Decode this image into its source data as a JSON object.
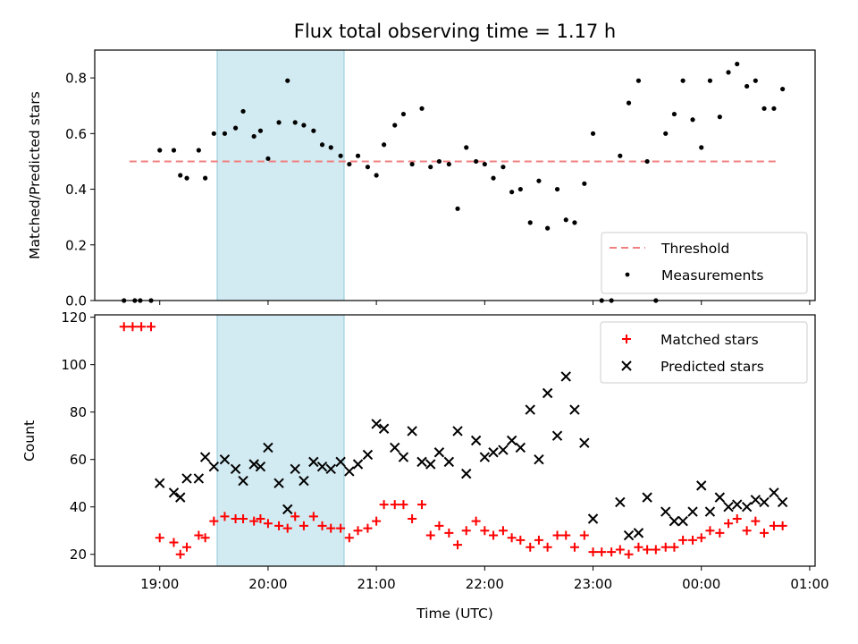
{
  "chart_data": [
    {
      "type": "scatter",
      "title": "Flux total observing time = 1.17 h",
      "xlabel": "",
      "ylabel": "Matched/Predicted stars",
      "xlim": [
        18.4,
        25.05
      ],
      "ylim": [
        0,
        0.9
      ],
      "yticks": [
        0.0,
        0.2,
        0.4,
        0.6,
        0.8
      ],
      "ytick_labels": [
        "0.0",
        "0.2",
        "0.4",
        "0.6",
        "0.8"
      ],
      "xticks": [
        19,
        20,
        21,
        22,
        23,
        24,
        25
      ],
      "shaded_span": [
        19.48,
        20.67
      ],
      "shade_color": "#add8e6",
      "grid": false,
      "legend_position": "lower right",
      "legend": [
        {
          "label": "Threshold",
          "marker": "dashed-line",
          "color": "#f08080"
        },
        {
          "label": "Measurements",
          "marker": "dot",
          "color": "#000000"
        }
      ],
      "series": [
        {
          "name": "Threshold",
          "style": "dashed-line",
          "color": "#f08080",
          "points": [
            [
              18.72,
              0.5
            ],
            [
              24.72,
              0.5
            ]
          ]
        },
        {
          "name": "Measurements",
          "style": "dot",
          "color": "#000000",
          "points": [
            [
              18.67,
              0.0
            ],
            [
              18.77,
              0.0
            ],
            [
              18.82,
              0.0
            ],
            [
              18.92,
              0.0
            ],
            [
              19.0,
              0.54
            ],
            [
              19.13,
              0.54
            ],
            [
              19.19,
              0.45
            ],
            [
              19.25,
              0.44
            ],
            [
              19.36,
              0.54
            ],
            [
              19.42,
              0.44
            ],
            [
              19.5,
              0.6
            ],
            [
              19.6,
              0.6
            ],
            [
              19.7,
              0.62
            ],
            [
              19.77,
              0.68
            ],
            [
              19.87,
              0.59
            ],
            [
              19.93,
              0.61
            ],
            [
              20.0,
              0.51
            ],
            [
              20.1,
              0.64
            ],
            [
              20.18,
              0.79
            ],
            [
              20.25,
              0.64
            ],
            [
              20.33,
              0.63
            ],
            [
              20.42,
              0.61
            ],
            [
              20.5,
              0.56
            ],
            [
              20.58,
              0.55
            ],
            [
              20.67,
              0.52
            ],
            [
              20.75,
              0.49
            ],
            [
              20.83,
              0.52
            ],
            [
              20.92,
              0.48
            ],
            [
              21.0,
              0.45
            ],
            [
              21.07,
              0.56
            ],
            [
              21.17,
              0.63
            ],
            [
              21.25,
              0.67
            ],
            [
              21.33,
              0.49
            ],
            [
              21.42,
              0.69
            ],
            [
              21.5,
              0.48
            ],
            [
              21.58,
              0.5
            ],
            [
              21.67,
              0.49
            ],
            [
              21.75,
              0.33
            ],
            [
              21.83,
              0.55
            ],
            [
              21.92,
              0.5
            ],
            [
              22.0,
              0.49
            ],
            [
              22.08,
              0.44
            ],
            [
              22.17,
              0.48
            ],
            [
              22.25,
              0.39
            ],
            [
              22.33,
              0.4
            ],
            [
              22.42,
              0.28
            ],
            [
              22.5,
              0.43
            ],
            [
              22.58,
              0.26
            ],
            [
              22.67,
              0.4
            ],
            [
              22.75,
              0.29
            ],
            [
              22.83,
              0.28
            ],
            [
              22.92,
              0.42
            ],
            [
              23.0,
              0.6
            ],
            [
              23.08,
              0.0
            ],
            [
              23.17,
              0.0
            ],
            [
              23.25,
              0.52
            ],
            [
              23.33,
              0.71
            ],
            [
              23.42,
              0.79
            ],
            [
              23.5,
              0.5
            ],
            [
              23.58,
              0.0
            ],
            [
              23.67,
              0.6
            ],
            [
              23.75,
              0.67
            ],
            [
              23.83,
              0.79
            ],
            [
              23.92,
              0.65
            ],
            [
              24.0,
              0.55
            ],
            [
              24.08,
              0.79
            ],
            [
              24.17,
              0.66
            ],
            [
              24.25,
              0.82
            ],
            [
              24.33,
              0.85
            ],
            [
              24.42,
              0.77
            ],
            [
              24.5,
              0.79
            ],
            [
              24.58,
              0.69
            ],
            [
              24.67,
              0.69
            ],
            [
              24.75,
              0.76
            ]
          ]
        }
      ]
    },
    {
      "type": "scatter",
      "title": "",
      "xlabel": "Time (UTC)",
      "ylabel": "Count",
      "xlim": [
        18.4,
        25.05
      ],
      "ylim": [
        15,
        121
      ],
      "yticks": [
        20,
        40,
        60,
        80,
        100,
        120
      ],
      "ytick_labels": [
        "20",
        "40",
        "60",
        "80",
        "100",
        "120"
      ],
      "xticks": [
        19,
        20,
        21,
        22,
        23,
        24,
        25
      ],
      "xtick_labels": [
        "19:00",
        "20:00",
        "21:00",
        "22:00",
        "23:00",
        "00:00",
        "01:00"
      ],
      "shaded_span": [
        19.48,
        20.67
      ],
      "shade_color": "#add8e6",
      "grid": false,
      "legend_position": "upper right",
      "legend": [
        {
          "label": "Matched stars",
          "marker": "plus",
          "color": "#ff0000"
        },
        {
          "label": "Predicted stars",
          "marker": "x",
          "color": "#000000"
        }
      ],
      "series": [
        {
          "name": "Matched stars",
          "style": "plus",
          "color": "#ff0000",
          "points": [
            [
              18.67,
              116
            ],
            [
              18.75,
              116
            ],
            [
              18.83,
              116
            ],
            [
              18.92,
              116
            ],
            [
              19.0,
              27
            ],
            [
              19.13,
              25
            ],
            [
              19.19,
              20
            ],
            [
              19.25,
              23
            ],
            [
              19.36,
              28
            ],
            [
              19.42,
              27
            ],
            [
              19.5,
              34
            ],
            [
              19.6,
              36
            ],
            [
              19.7,
              35
            ],
            [
              19.77,
              35
            ],
            [
              19.87,
              34
            ],
            [
              19.93,
              35
            ],
            [
              20.0,
              33
            ],
            [
              20.1,
              32
            ],
            [
              20.18,
              31
            ],
            [
              20.25,
              36
            ],
            [
              20.33,
              32
            ],
            [
              20.42,
              36
            ],
            [
              20.5,
              32
            ],
            [
              20.58,
              31
            ],
            [
              20.67,
              31
            ],
            [
              20.75,
              27
            ],
            [
              20.83,
              30
            ],
            [
              20.92,
              31
            ],
            [
              21.0,
              34
            ],
            [
              21.07,
              41
            ],
            [
              21.17,
              41
            ],
            [
              21.25,
              41
            ],
            [
              21.33,
              35
            ],
            [
              21.42,
              41
            ],
            [
              21.5,
              28
            ],
            [
              21.58,
              32
            ],
            [
              21.67,
              29
            ],
            [
              21.75,
              24
            ],
            [
              21.83,
              30
            ],
            [
              21.92,
              34
            ],
            [
              22.0,
              30
            ],
            [
              22.08,
              28
            ],
            [
              22.17,
              30
            ],
            [
              22.25,
              27
            ],
            [
              22.33,
              26
            ],
            [
              22.42,
              23
            ],
            [
              22.5,
              26
            ],
            [
              22.58,
              23
            ],
            [
              22.67,
              28
            ],
            [
              22.75,
              28
            ],
            [
              22.83,
              23
            ],
            [
              22.92,
              28
            ],
            [
              23.0,
              21
            ],
            [
              23.08,
              21
            ],
            [
              23.17,
              21
            ],
            [
              23.25,
              22
            ],
            [
              23.33,
              20
            ],
            [
              23.42,
              23
            ],
            [
              23.5,
              22
            ],
            [
              23.58,
              22
            ],
            [
              23.67,
              23
            ],
            [
              23.75,
              23
            ],
            [
              23.83,
              26
            ],
            [
              23.92,
              26
            ],
            [
              24.0,
              27
            ],
            [
              24.08,
              30
            ],
            [
              24.17,
              29
            ],
            [
              24.25,
              33
            ],
            [
              24.33,
              35
            ],
            [
              24.42,
              30
            ],
            [
              24.5,
              34
            ],
            [
              24.58,
              29
            ],
            [
              24.67,
              32
            ],
            [
              24.75,
              32
            ]
          ]
        },
        {
          "name": "Predicted stars",
          "style": "x",
          "color": "#000000",
          "points": [
            [
              19.0,
              50
            ],
            [
              19.13,
              46
            ],
            [
              19.19,
              44
            ],
            [
              19.25,
              52
            ],
            [
              19.36,
              52
            ],
            [
              19.42,
              61
            ],
            [
              19.5,
              57
            ],
            [
              19.6,
              60
            ],
            [
              19.7,
              56
            ],
            [
              19.77,
              51
            ],
            [
              19.87,
              58
            ],
            [
              19.93,
              57
            ],
            [
              20.0,
              65
            ],
            [
              20.1,
              50
            ],
            [
              20.18,
              39
            ],
            [
              20.25,
              56
            ],
            [
              20.33,
              51
            ],
            [
              20.42,
              59
            ],
            [
              20.5,
              57
            ],
            [
              20.58,
              56
            ],
            [
              20.67,
              59
            ],
            [
              20.75,
              55
            ],
            [
              20.83,
              58
            ],
            [
              20.92,
              62
            ],
            [
              21.0,
              75
            ],
            [
              21.07,
              73
            ],
            [
              21.17,
              65
            ],
            [
              21.25,
              61
            ],
            [
              21.33,
              72
            ],
            [
              21.42,
              59
            ],
            [
              21.5,
              58
            ],
            [
              21.58,
              63
            ],
            [
              21.67,
              59
            ],
            [
              21.75,
              72
            ],
            [
              21.83,
              54
            ],
            [
              21.92,
              68
            ],
            [
              22.0,
              61
            ],
            [
              22.08,
              63
            ],
            [
              22.17,
              64
            ],
            [
              22.25,
              68
            ],
            [
              22.33,
              65
            ],
            [
              22.42,
              81
            ],
            [
              22.5,
              60
            ],
            [
              22.58,
              88
            ],
            [
              22.67,
              70
            ],
            [
              22.75,
              95
            ],
            [
              22.83,
              81
            ],
            [
              22.92,
              67
            ],
            [
              23.0,
              35
            ],
            [
              23.25,
              42
            ],
            [
              23.33,
              28
            ],
            [
              23.42,
              29
            ],
            [
              23.5,
              44
            ],
            [
              23.67,
              38
            ],
            [
              23.75,
              34
            ],
            [
              23.83,
              34
            ],
            [
              23.92,
              38
            ],
            [
              24.0,
              49
            ],
            [
              24.08,
              38
            ],
            [
              24.17,
              44
            ],
            [
              24.25,
              40
            ],
            [
              24.33,
              41
            ],
            [
              24.42,
              40
            ],
            [
              24.5,
              43
            ],
            [
              24.58,
              42
            ],
            [
              24.67,
              46
            ],
            [
              24.75,
              42
            ]
          ]
        }
      ]
    }
  ]
}
